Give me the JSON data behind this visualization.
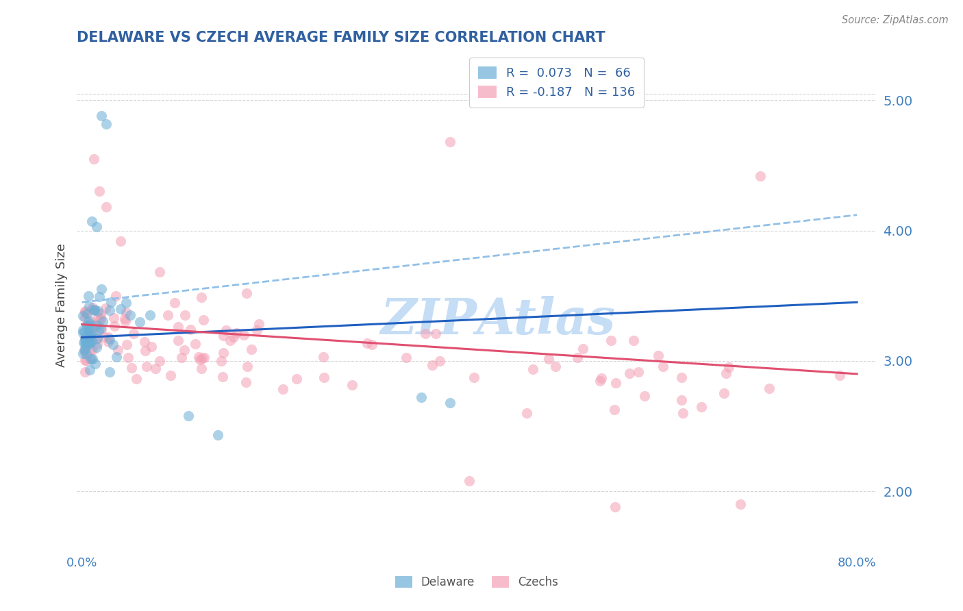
{
  "title": "DELAWARE VS CZECH AVERAGE FAMILY SIZE CORRELATION CHART",
  "source": "Source: ZipAtlas.com",
  "ylabel": "Average Family Size",
  "ymin": 1.55,
  "ymax": 5.3,
  "xmin": -0.005,
  "xmax": 0.82,
  "yticks": [
    2.0,
    3.0,
    4.0,
    5.0
  ],
  "ytick_top": 5.05,
  "delaware_R": 0.073,
  "delaware_N": 66,
  "czech_R": -0.187,
  "czech_N": 136,
  "delaware_color": "#6baed6",
  "czech_color": "#f4a0b5",
  "delaware_solid_color": "#2060c0",
  "delaware_dashed_color": "#90c0e8",
  "czech_trend_color": "#e05070",
  "title_color": "#3060a0",
  "axis_color": "#4080c0",
  "legend_text_color": "#3060a0",
  "watermark_color": "#c5ddf5",
  "background_color": "#ffffff",
  "grid_color": "#cccccc",
  "dot_size": 120,
  "dot_alpha": 0.55,
  "dot_linewidth": 1.5
}
